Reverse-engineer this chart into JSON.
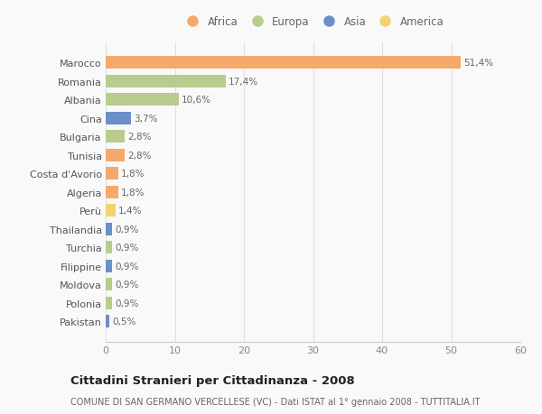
{
  "countries": [
    "Marocco",
    "Romania",
    "Albania",
    "Cina",
    "Bulgaria",
    "Tunisia",
    "Costa d'Avorio",
    "Algeria",
    "Perù",
    "Thailandia",
    "Turchia",
    "Filippine",
    "Moldova",
    "Polonia",
    "Pakistan"
  ],
  "values": [
    51.4,
    17.4,
    10.6,
    3.7,
    2.8,
    2.8,
    1.8,
    1.8,
    1.4,
    0.9,
    0.9,
    0.9,
    0.9,
    0.9,
    0.5
  ],
  "labels": [
    "51,4%",
    "17,4%",
    "10,6%",
    "3,7%",
    "2,8%",
    "2,8%",
    "1,8%",
    "1,8%",
    "1,4%",
    "0,9%",
    "0,9%",
    "0,9%",
    "0,9%",
    "0,9%",
    "0,5%"
  ],
  "continents": [
    "Africa",
    "Europa",
    "Europa",
    "Asia",
    "Europa",
    "Africa",
    "Africa",
    "Africa",
    "America",
    "Asia",
    "Europa",
    "Asia",
    "Europa",
    "Europa",
    "Asia"
  ],
  "continent_colors": {
    "Africa": "#F5A96B",
    "Europa": "#B8CC8E",
    "Asia": "#6B8FC7",
    "America": "#F2D472"
  },
  "legend_entries": [
    "Africa",
    "Europa",
    "Asia",
    "America"
  ],
  "legend_colors": [
    "#F5A96B",
    "#B8CC8E",
    "#6B8FC7",
    "#F2D472"
  ],
  "xlim": [
    0,
    60
  ],
  "xticks": [
    0,
    10,
    20,
    30,
    40,
    50,
    60
  ],
  "title": "Cittadini Stranieri per Cittadinanza - 2008",
  "subtitle": "COMUNE DI SAN GERMANO VERCELLESE (VC) - Dati ISTAT al 1° gennaio 2008 - TUTTITALIA.IT",
  "bg_color": "#f9f9f9",
  "grid_color": "#e0e0e0",
  "bar_height": 0.68,
  "label_fontsize": 7.5,
  "ytick_fontsize": 8,
  "xtick_fontsize": 8
}
